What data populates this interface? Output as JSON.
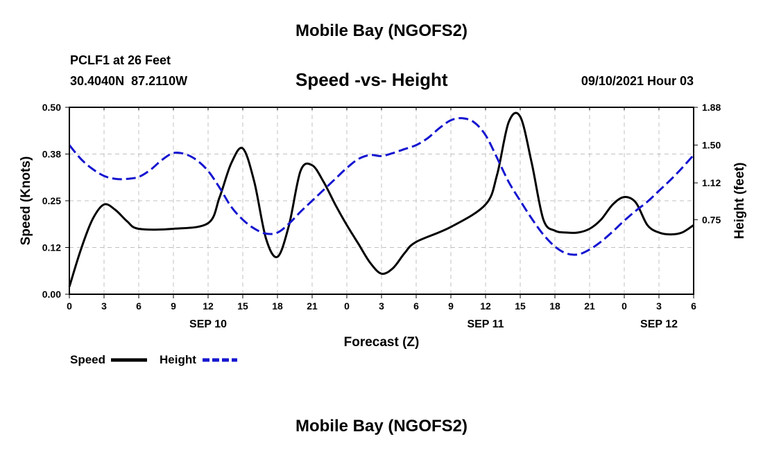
{
  "header": {
    "title": "Mobile Bay (NGOFS2)",
    "station": "PCLF1 at 26 Feet",
    "coords": "30.4040N  87.2110W",
    "subtitle": "Speed -vs- Height",
    "datetime": "09/10/2021 Hour 03"
  },
  "footer": {
    "title": "Mobile Bay (NGOFS2)"
  },
  "legend": {
    "speed_label": "Speed",
    "height_label": "Height"
  },
  "colors": {
    "speed": "#000000",
    "height": "#1515d0",
    "grid": "#c0c0c0"
  },
  "chart_data": {
    "type": "line",
    "xlabel": "Forecast (Z)",
    "ylabel_left": "Speed (Knots)",
    "ylabel_right": "Height (feet)",
    "xlim": [
      0,
      54
    ],
    "ylim_left": [
      0,
      0.5
    ],
    "ylim_right": [
      0,
      1.88
    ],
    "x_ticks": [
      {
        "x": 0,
        "label": "0"
      },
      {
        "x": 3,
        "label": "3"
      },
      {
        "x": 6,
        "label": "6"
      },
      {
        "x": 9,
        "label": "9"
      },
      {
        "x": 12,
        "label": "12"
      },
      {
        "x": 15,
        "label": "15"
      },
      {
        "x": 18,
        "label": "18"
      },
      {
        "x": 21,
        "label": "21"
      },
      {
        "x": 24,
        "label": "0"
      },
      {
        "x": 27,
        "label": "3"
      },
      {
        "x": 30,
        "label": "6"
      },
      {
        "x": 33,
        "label": "9"
      },
      {
        "x": 36,
        "label": "12"
      },
      {
        "x": 39,
        "label": "15"
      },
      {
        "x": 42,
        "label": "18"
      },
      {
        "x": 45,
        "label": "21"
      },
      {
        "x": 48,
        "label": "0"
      },
      {
        "x": 51,
        "label": "3"
      },
      {
        "x": 54,
        "label": "6"
      }
    ],
    "date_labels": [
      {
        "x": 12,
        "label": "SEP 10"
      },
      {
        "x": 36,
        "label": "SEP 11"
      },
      {
        "x": 51,
        "label": "SEP 12"
      }
    ],
    "y_ticks_left": [
      {
        "value": 0.0,
        "label": "0.00"
      },
      {
        "value": 0.125,
        "label": "0.12"
      },
      {
        "value": 0.25,
        "label": "0.25"
      },
      {
        "value": 0.375,
        "label": "0.38"
      },
      {
        "value": 0.5,
        "label": "0.50"
      }
    ],
    "y_ticks_right": [
      {
        "value": 0.75,
        "label": "0.75"
      },
      {
        "value": 1.12,
        "label": "1.12"
      },
      {
        "value": 1.5,
        "label": "1.50"
      },
      {
        "value": 1.88,
        "label": "1.88"
      }
    ],
    "grid": true,
    "series": [
      {
        "name": "Speed",
        "axis": "left",
        "style": "solid",
        "x": [
          0,
          1,
          2,
          3,
          4,
          5,
          6,
          9,
          12,
          13,
          14,
          15,
          16,
          17,
          18,
          19,
          20,
          21,
          22,
          23,
          24,
          25,
          26,
          27,
          28,
          29,
          30,
          33,
          36,
          37,
          38,
          39,
          40,
          41,
          42,
          43,
          44,
          45,
          46,
          47,
          48,
          49,
          50,
          51,
          52,
          53,
          54
        ],
        "values": [
          0.02,
          0.12,
          0.2,
          0.24,
          0.225,
          0.195,
          0.175,
          0.175,
          0.19,
          0.26,
          0.35,
          0.39,
          0.3,
          0.15,
          0.1,
          0.185,
          0.33,
          0.345,
          0.3,
          0.24,
          0.185,
          0.135,
          0.085,
          0.055,
          0.07,
          0.11,
          0.14,
          0.18,
          0.24,
          0.32,
          0.46,
          0.475,
          0.35,
          0.2,
          0.17,
          0.165,
          0.165,
          0.175,
          0.2,
          0.24,
          0.26,
          0.245,
          0.185,
          0.165,
          0.16,
          0.165,
          0.185
        ]
      },
      {
        "name": "Height",
        "axis": "right",
        "style": "dashed",
        "x": [
          0,
          1,
          2,
          3,
          4,
          5,
          6,
          7,
          8,
          9,
          10,
          11,
          12,
          13,
          14,
          15,
          16,
          17,
          18,
          19,
          20,
          21,
          22,
          23,
          24,
          25,
          26,
          27,
          28,
          29,
          30,
          31,
          32,
          33,
          34,
          35,
          36,
          37,
          38,
          39,
          40,
          41,
          42,
          43,
          44,
          45,
          46,
          47,
          48,
          49,
          50,
          51,
          52,
          53,
          54
        ],
        "values": [
          1.5,
          1.36,
          1.26,
          1.19,
          1.16,
          1.16,
          1.18,
          1.25,
          1.35,
          1.42,
          1.41,
          1.35,
          1.24,
          1.07,
          0.88,
          0.75,
          0.66,
          0.61,
          0.62,
          0.71,
          0.83,
          0.94,
          1.05,
          1.16,
          1.27,
          1.36,
          1.4,
          1.39,
          1.42,
          1.46,
          1.5,
          1.57,
          1.67,
          1.75,
          1.77,
          1.73,
          1.6,
          1.37,
          1.13,
          0.94,
          0.76,
          0.6,
          0.48,
          0.41,
          0.4,
          0.45,
          0.53,
          0.63,
          0.74,
          0.84,
          0.93,
          1.04,
          1.15,
          1.27,
          1.4
        ]
      }
    ]
  }
}
